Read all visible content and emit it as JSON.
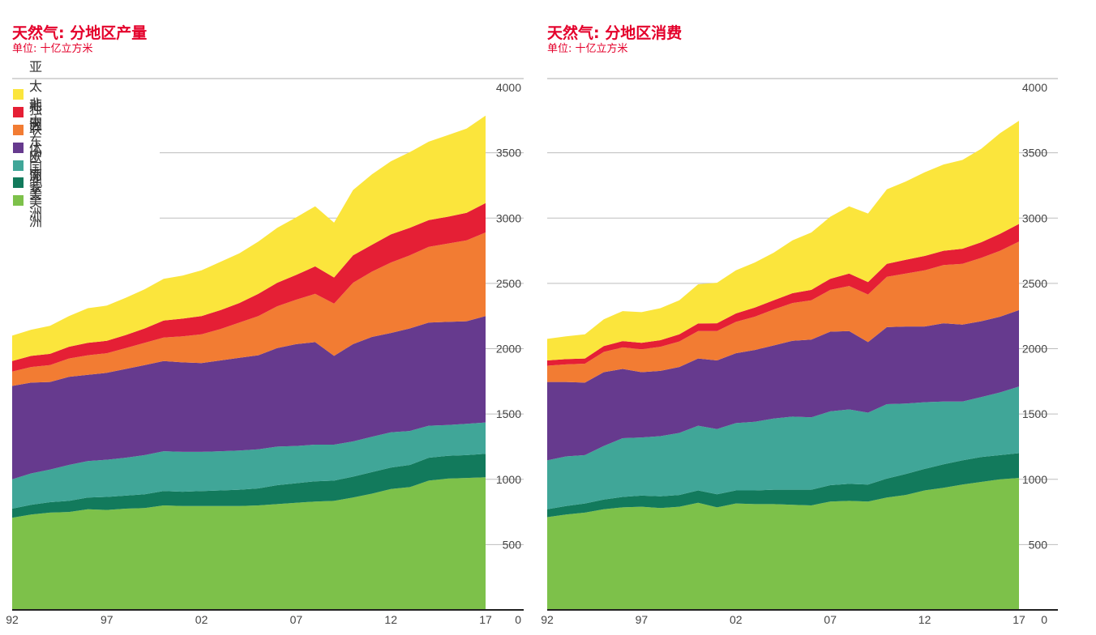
{
  "colors": {
    "accent": "#e4002b",
    "series": {
      "北美洲": "#7dc14a",
      "中南美洲": "#127a5c",
      "欧洲": "#40a698",
      "独联体国家": "#663a8e",
      "中东": "#f27c33",
      "非洲": "#e51f35",
      "亚太地区": "#fbe53c"
    }
  },
  "chart_data": [
    {
      "type": "area",
      "stacked": true,
      "title": "天然气: 分地区产量",
      "subtitle": "单位: 十亿立方米",
      "x": [
        1992,
        1993,
        1994,
        1995,
        1996,
        1997,
        1998,
        1999,
        2000,
        2001,
        2002,
        2003,
        2004,
        2005,
        2006,
        2007,
        2008,
        2009,
        2010,
        2011,
        2012,
        2013,
        2014,
        2015,
        2016,
        2017
      ],
      "xticks": [
        "92",
        "97",
        "02",
        "07",
        "12",
        "17"
      ],
      "yticks": [
        "0",
        "500",
        "1000",
        "1500",
        "2000",
        "2500",
        "3000",
        "3500",
        "4000"
      ],
      "ylim": [
        0,
        4000
      ],
      "grid": true,
      "legend_position": "top-left",
      "series": [
        {
          "name": "北美洲",
          "values": [
            705,
            730,
            745,
            750,
            770,
            765,
            775,
            780,
            800,
            795,
            795,
            795,
            795,
            800,
            810,
            820,
            830,
            835,
            860,
            890,
            925,
            940,
            990,
            1005,
            1010,
            1015
          ]
        },
        {
          "name": "中南美洲",
          "values": [
            70,
            75,
            80,
            85,
            90,
            100,
            100,
            105,
            110,
            110,
            115,
            120,
            125,
            130,
            145,
            150,
            155,
            155,
            160,
            165,
            165,
            170,
            175,
            175,
            175,
            180
          ]
        },
        {
          "name": "欧洲",
          "values": [
            225,
            240,
            250,
            275,
            280,
            285,
            290,
            300,
            305,
            305,
            300,
            300,
            300,
            300,
            295,
            285,
            280,
            275,
            270,
            270,
            270,
            260,
            245,
            235,
            240,
            240
          ]
        },
        {
          "name": "独联体国家",
          "values": [
            715,
            695,
            670,
            675,
            660,
            665,
            680,
            690,
            690,
            685,
            680,
            695,
            710,
            720,
            755,
            780,
            785,
            680,
            745,
            765,
            760,
            785,
            790,
            790,
            785,
            815
          ]
        },
        {
          "name": "中东",
          "values": [
            110,
            120,
            130,
            140,
            150,
            150,
            160,
            170,
            180,
            200,
            220,
            240,
            270,
            300,
            320,
            340,
            370,
            400,
            470,
            500,
            540,
            560,
            580,
            600,
            620,
            640
          ]
        },
        {
          "name": "非洲",
          "values": [
            80,
            85,
            85,
            90,
            95,
            95,
            100,
            110,
            130,
            135,
            140,
            145,
            150,
            170,
            180,
            190,
            210,
            200,
            210,
            205,
            215,
            210,
            205,
            205,
            210,
            225
          ]
        },
        {
          "name": "亚太地区",
          "values": [
            195,
            200,
            215,
            235,
            265,
            270,
            285,
            300,
            320,
            330,
            350,
            370,
            380,
            400,
            420,
            440,
            460,
            420,
            500,
            540,
            560,
            580,
            600,
            625,
            645,
            670
          ]
        }
      ]
    },
    {
      "type": "area",
      "stacked": true,
      "title": "天然气: 分地区消费",
      "subtitle": "单位: 十亿立方米",
      "x": [
        1992,
        1993,
        1994,
        1995,
        1996,
        1997,
        1998,
        1999,
        2000,
        2001,
        2002,
        2003,
        2004,
        2005,
        2006,
        2007,
        2008,
        2009,
        2010,
        2011,
        2012,
        2013,
        2014,
        2015,
        2016,
        2017
      ],
      "xticks": [
        "92",
        "97",
        "02",
        "07",
        "12",
        "17"
      ],
      "yticks": [
        "0",
        "500",
        "1000",
        "1500",
        "2000",
        "2500",
        "3000",
        "3500",
        "4000"
      ],
      "ylim": [
        0,
        4000
      ],
      "grid": true,
      "series": [
        {
          "name": "北美洲",
          "values": [
            710,
            730,
            745,
            770,
            785,
            790,
            780,
            790,
            820,
            785,
            815,
            810,
            810,
            805,
            800,
            830,
            835,
            830,
            860,
            880,
            915,
            935,
            960,
            980,
            1000,
            1010
          ]
        },
        {
          "name": "中南美洲",
          "values": [
            60,
            65,
            70,
            75,
            80,
            85,
            90,
            90,
            95,
            100,
            100,
            105,
            110,
            115,
            120,
            125,
            130,
            130,
            145,
            160,
            165,
            180,
            185,
            190,
            185,
            190
          ]
        },
        {
          "name": "欧洲",
          "values": [
            375,
            380,
            370,
            410,
            450,
            445,
            460,
            475,
            495,
            500,
            515,
            525,
            545,
            560,
            555,
            565,
            570,
            550,
            570,
            540,
            510,
            480,
            450,
            460,
            480,
            510
          ]
        },
        {
          "name": "独联体国家",
          "values": [
            600,
            570,
            555,
            565,
            530,
            500,
            500,
            505,
            515,
            525,
            535,
            550,
            560,
            580,
            595,
            610,
            600,
            540,
            590,
            590,
            580,
            600,
            590,
            580,
            580,
            585
          ]
        },
        {
          "name": "中东",
          "values": [
            125,
            135,
            145,
            155,
            165,
            175,
            185,
            195,
            210,
            225,
            240,
            255,
            275,
            290,
            300,
            320,
            345,
            365,
            385,
            405,
            430,
            445,
            465,
            485,
            505,
            525
          ]
        },
        {
          "name": "非洲",
          "values": [
            40,
            40,
            40,
            45,
            48,
            50,
            50,
            55,
            58,
            60,
            65,
            70,
            70,
            75,
            80,
            85,
            95,
            95,
            100,
            105,
            110,
            110,
            115,
            120,
            130,
            135
          ]
        },
        {
          "name": "亚太地区",
          "values": [
            165,
            175,
            185,
            205,
            230,
            235,
            245,
            260,
            300,
            310,
            330,
            345,
            365,
            405,
            440,
            475,
            515,
            525,
            570,
            600,
            640,
            660,
            680,
            715,
            770,
            790
          ]
        }
      ]
    }
  ]
}
